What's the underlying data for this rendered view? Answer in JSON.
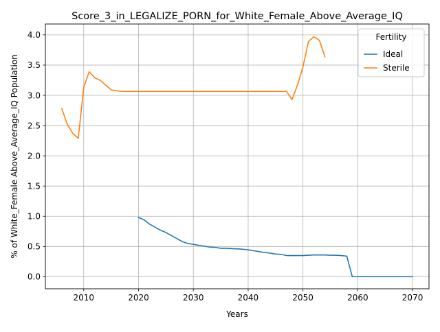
{
  "chart_data": {
    "type": "line",
    "title": "Score_3_in_LEGALIZE_PORN_for_White_Female_Above_Average_IQ",
    "xlabel": "Years",
    "ylabel": "% of White_Female Above_Average_IQ Population",
    "xlim": [
      2003,
      2073
    ],
    "ylim": [
      -0.2,
      4.18
    ],
    "xticks": [
      2010,
      2020,
      2030,
      2040,
      2050,
      2060,
      2070
    ],
    "yticks": [
      0.0,
      0.5,
      1.0,
      1.5,
      2.0,
      2.5,
      3.0,
      3.5,
      4.0
    ],
    "ytick_labels": [
      "0.0",
      "0.5",
      "1.0",
      "1.5",
      "2.0",
      "2.5",
      "3.0",
      "3.5",
      "4.0"
    ],
    "grid": true,
    "legend": {
      "title": "Fertility",
      "position": "top-right"
    },
    "series": [
      {
        "name": "Ideal",
        "color": "#1f77b4",
        "x": [
          2020,
          2021,
          2022,
          2023,
          2024,
          2025,
          2026,
          2027,
          2028,
          2029,
          2030,
          2031,
          2032,
          2033,
          2034,
          2035,
          2036,
          2037,
          2038,
          2039,
          2040,
          2041,
          2042,
          2043,
          2044,
          2045,
          2046,
          2047,
          2048,
          2049,
          2050,
          2051,
          2052,
          2053,
          2054,
          2055,
          2056,
          2057,
          2058,
          2059,
          2060,
          2061,
          2062,
          2063,
          2064,
          2065,
          2066,
          2067,
          2068,
          2069,
          2070
        ],
        "y": [
          0.98,
          0.94,
          0.87,
          0.82,
          0.77,
          0.73,
          0.68,
          0.63,
          0.58,
          0.55,
          0.535,
          0.52,
          0.505,
          0.49,
          0.485,
          0.47,
          0.47,
          0.465,
          0.46,
          0.455,
          0.445,
          0.43,
          0.415,
          0.4,
          0.39,
          0.375,
          0.37,
          0.35,
          0.35,
          0.35,
          0.35,
          0.355,
          0.36,
          0.36,
          0.36,
          0.355,
          0.355,
          0.35,
          0.34,
          0.0,
          0.0,
          0.0,
          0.0,
          0.0,
          0.0,
          0.0,
          0.0,
          0.0,
          0.0,
          0.0,
          0.0
        ]
      },
      {
        "name": "Sterile",
        "color": "#ff7f0e",
        "x": [
          2006,
          2007,
          2008,
          2009,
          2010,
          2011,
          2012,
          2013,
          2014,
          2015,
          2016,
          2017,
          2018,
          2019,
          2020,
          2021,
          2022,
          2023,
          2024,
          2025,
          2026,
          2027,
          2028,
          2029,
          2030,
          2031,
          2032,
          2033,
          2034,
          2035,
          2036,
          2037,
          2038,
          2039,
          2040,
          2041,
          2042,
          2043,
          2044,
          2045,
          2046,
          2047,
          2048,
          2049,
          2050,
          2051,
          2052,
          2053,
          2054
        ],
        "y": [
          2.78,
          2.52,
          2.37,
          2.29,
          3.13,
          3.39,
          3.29,
          3.25,
          3.17,
          3.09,
          3.075,
          3.065,
          3.065,
          3.065,
          3.065,
          3.065,
          3.065,
          3.065,
          3.065,
          3.065,
          3.065,
          3.065,
          3.065,
          3.065,
          3.065,
          3.065,
          3.065,
          3.065,
          3.065,
          3.065,
          3.065,
          3.065,
          3.065,
          3.065,
          3.065,
          3.065,
          3.065,
          3.065,
          3.065,
          3.065,
          3.065,
          3.065,
          2.93,
          3.17,
          3.47,
          3.89,
          3.97,
          3.91,
          3.64
        ]
      }
    ]
  }
}
